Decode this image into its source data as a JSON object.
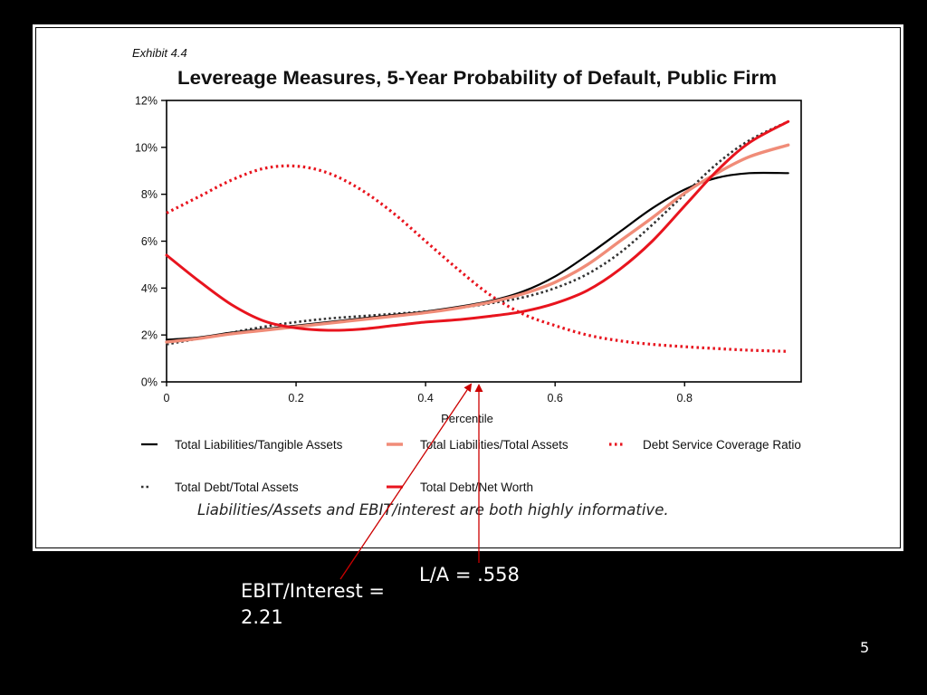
{
  "slide": {
    "note_ebit_line1": "EBIT/Interest =",
    "note_ebit_line2": "2.21",
    "note_la": "L/A = .558",
    "slide_number": "5"
  },
  "colors": {
    "background": "#000000",
    "panel": "#ffffff",
    "black_series": "#000000",
    "salmon_series": "#f08c78",
    "red_series": "#e8141e",
    "dark_dotted": "#333333",
    "arrow": "#cc0000"
  },
  "chart_data": {
    "type": "line",
    "exhibit_label": "Exhibit 4.4",
    "title": "Levereage Measures, 5-Year Probability of Default, Public Firm",
    "xlabel": "Percentile",
    "ylabel": "",
    "caption": "Liabilities/Assets and EBIT/interest are both highly informative.",
    "xlim": [
      0,
      0.98
    ],
    "ylim": [
      0,
      12
    ],
    "x_ticks": [
      0,
      0.2,
      0.4,
      0.6,
      0.8
    ],
    "x_tick_labels": [
      "0",
      "0.2",
      "0.4",
      "0.6",
      "0.8"
    ],
    "y_ticks": [
      0,
      2,
      4,
      6,
      8,
      10,
      12
    ],
    "y_tick_labels": [
      "0%",
      "2%",
      "4%",
      "6%",
      "8%",
      "10%",
      "12%"
    ],
    "x": [
      0,
      0.05,
      0.1,
      0.15,
      0.2,
      0.25,
      0.3,
      0.35,
      0.4,
      0.45,
      0.5,
      0.55,
      0.6,
      0.65,
      0.7,
      0.75,
      0.8,
      0.85,
      0.9,
      0.96
    ],
    "series": [
      {
        "name": "Total Liabilities/Tangible Assets",
        "style": "solid-thin",
        "values": [
          1.8,
          1.9,
          2.1,
          2.25,
          2.4,
          2.55,
          2.7,
          2.85,
          3.0,
          3.2,
          3.45,
          3.85,
          4.5,
          5.4,
          6.4,
          7.4,
          8.2,
          8.7,
          8.9,
          8.9
        ]
      },
      {
        "name": "Total Liabilities/Total Assets",
        "style": "solid-thick",
        "values": [
          1.7,
          1.85,
          2.05,
          2.2,
          2.35,
          2.5,
          2.65,
          2.8,
          2.95,
          3.15,
          3.4,
          3.75,
          4.25,
          5.0,
          6.0,
          7.0,
          8.05,
          8.9,
          9.6,
          10.1
        ]
      },
      {
        "name": "Debt Service Coverage Ratio",
        "style": "dotted-thick",
        "values": [
          7.2,
          7.9,
          8.6,
          9.1,
          9.2,
          8.9,
          8.2,
          7.2,
          6.0,
          4.8,
          3.7,
          2.9,
          2.4,
          2.0,
          1.75,
          1.6,
          1.5,
          1.42,
          1.35,
          1.3
        ]
      },
      {
        "name": "Total Debt/Total Assets",
        "style": "dotted-thin",
        "values": [
          1.6,
          1.85,
          2.1,
          2.35,
          2.55,
          2.7,
          2.8,
          2.9,
          3.0,
          3.15,
          3.35,
          3.6,
          4.0,
          4.6,
          5.5,
          6.7,
          8.0,
          9.3,
          10.3,
          11.1
        ]
      },
      {
        "name": "Total Debt/Net Worth",
        "style": "solid-red",
        "values": [
          5.4,
          4.3,
          3.3,
          2.6,
          2.3,
          2.2,
          2.25,
          2.4,
          2.55,
          2.65,
          2.8,
          3.0,
          3.35,
          3.9,
          4.8,
          6.0,
          7.5,
          9.0,
          10.2,
          11.1
        ]
      }
    ],
    "legend_placement": "bottom",
    "grid": false
  }
}
